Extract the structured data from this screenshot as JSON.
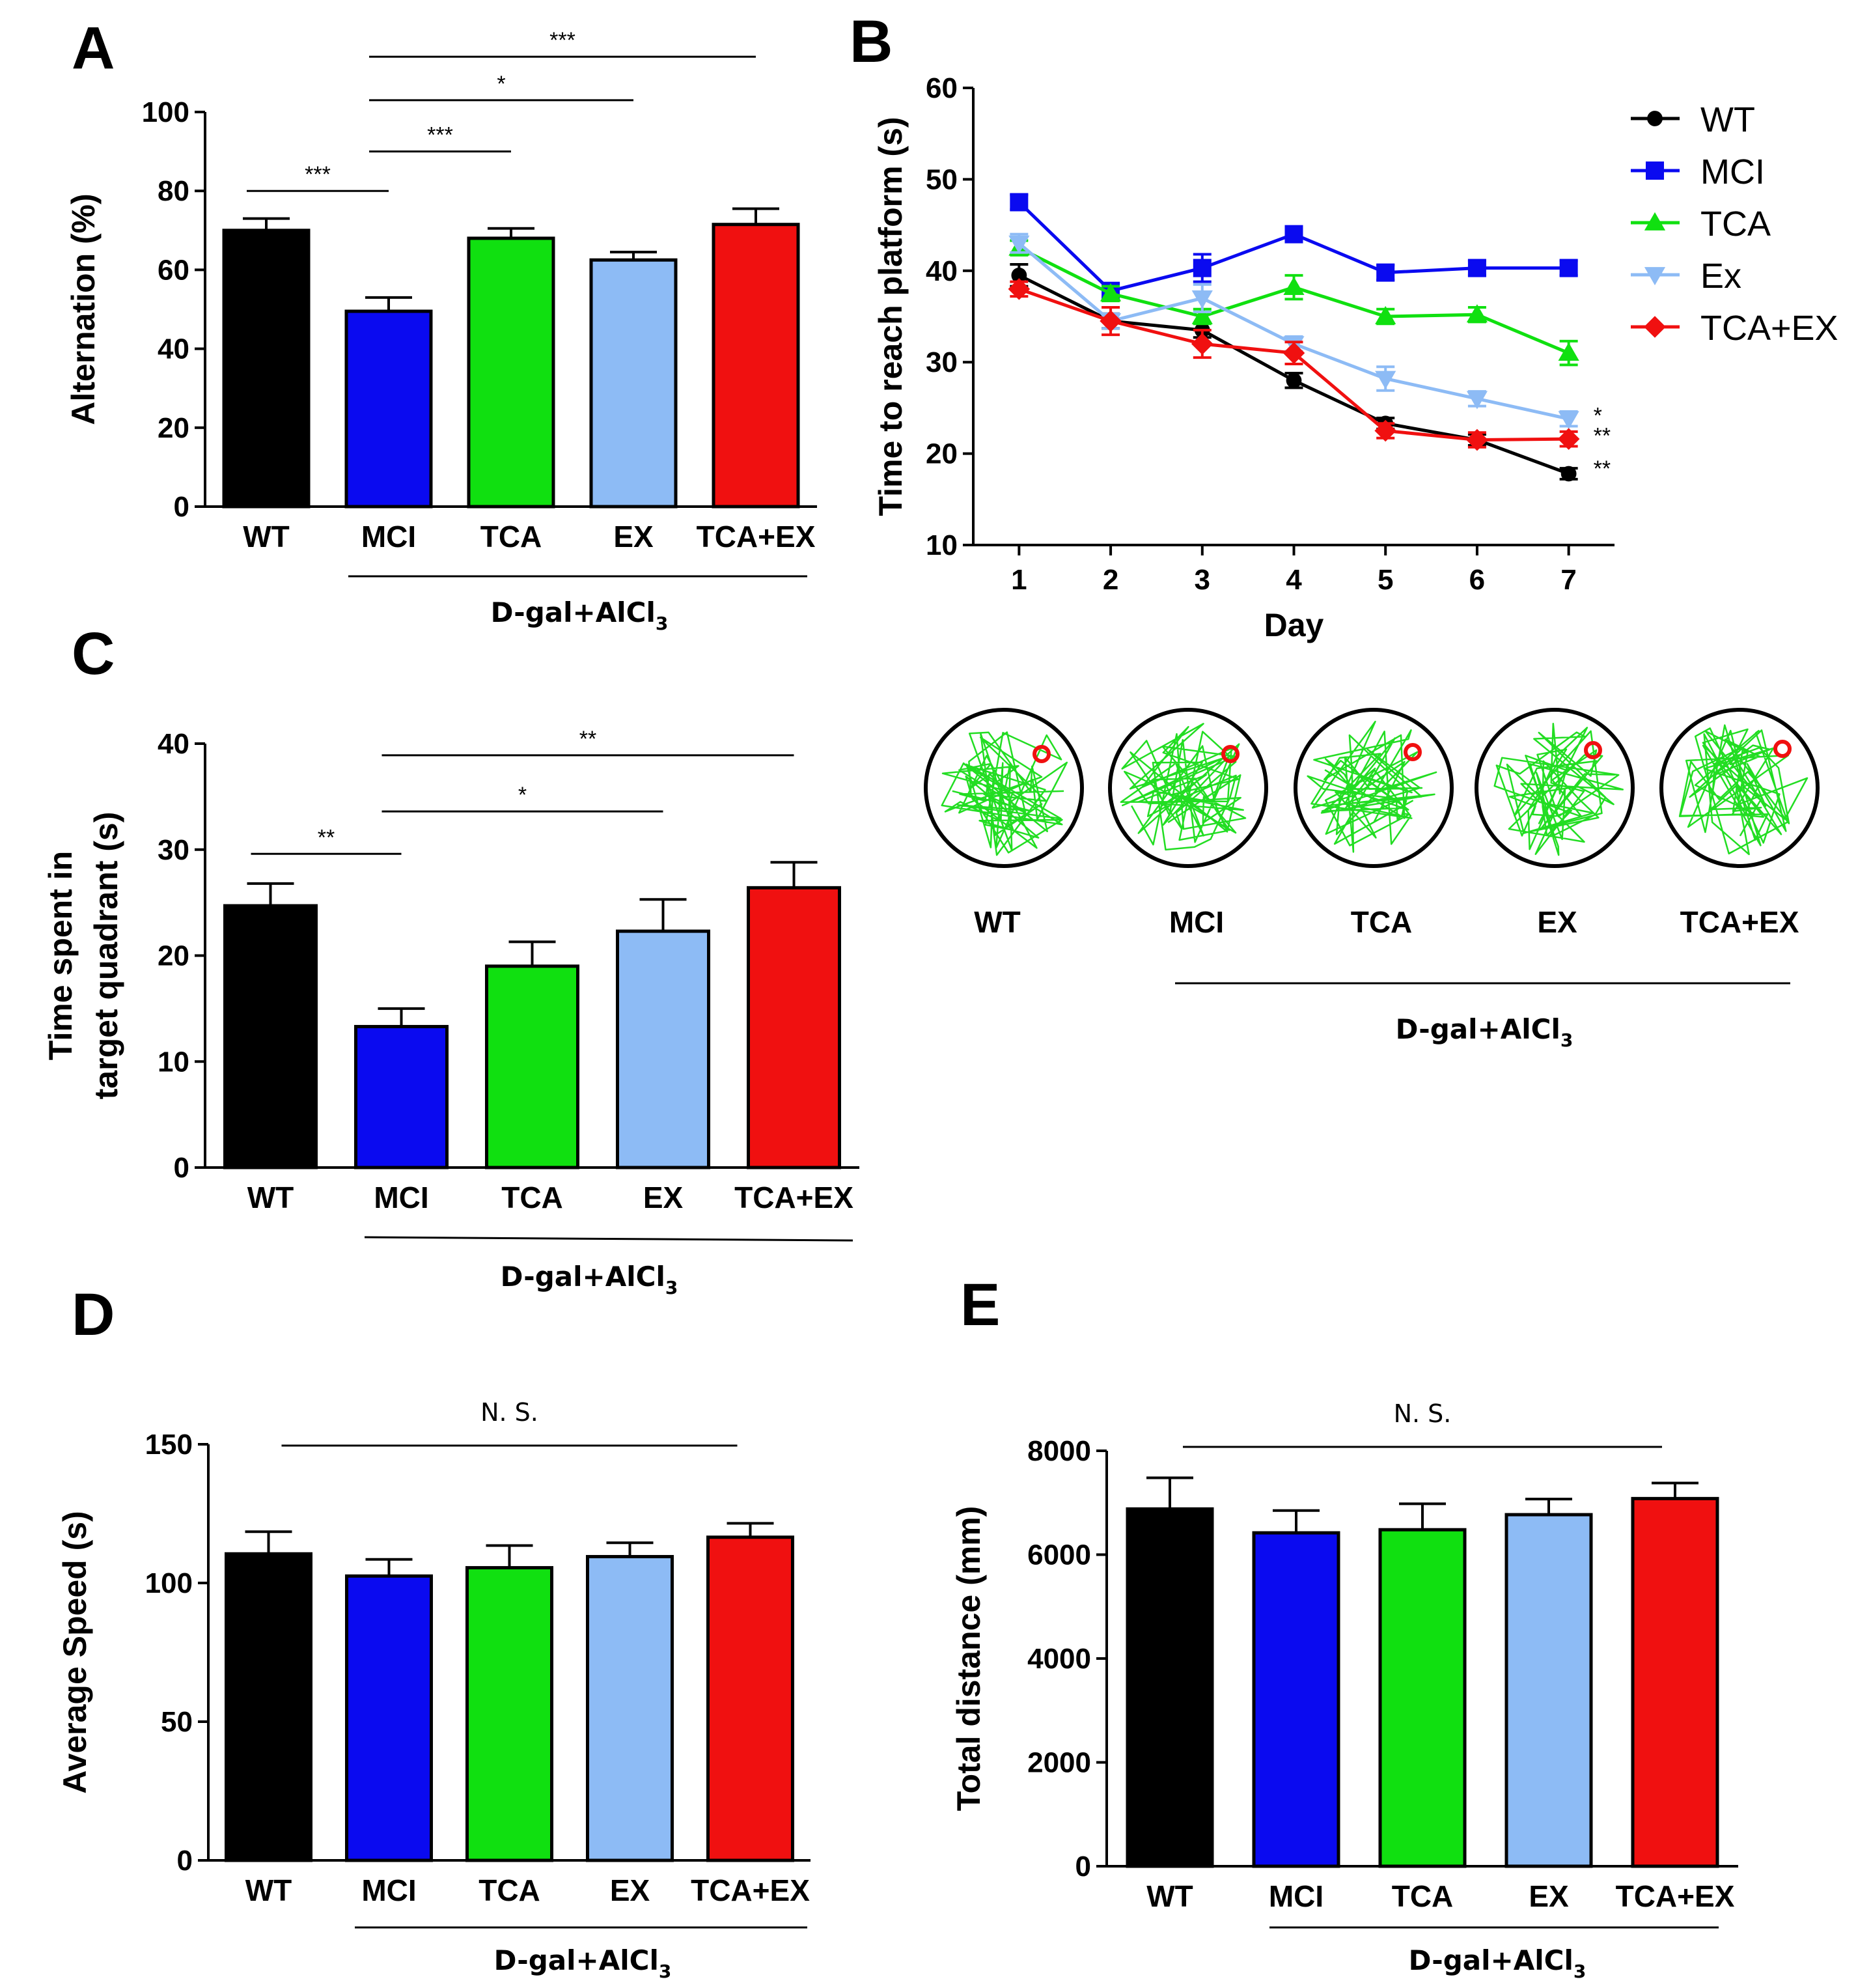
{
  "panels": {
    "A": "A",
    "B": "B",
    "C": "C",
    "D": "D",
    "E": "E"
  },
  "group_label": {
    "main": "D-gal+AlCl",
    "sub": "3"
  },
  "colors": {
    "WT": "#000000",
    "MCI": "#0a0af0",
    "TCA": "#10e010",
    "EX": "#8dbbf5",
    "TCA+EX": "#f01010"
  },
  "chart_data": [
    {
      "id": "A",
      "type": "bar",
      "categories": [
        "WT",
        "MCI",
        "TCA",
        "EX",
        "TCA+EX"
      ],
      "values": [
        70,
        49.5,
        68,
        62.5,
        71.5
      ],
      "errors": [
        3,
        3.5,
        2.5,
        2,
        4
      ],
      "ylabel": "Alternation (%)",
      "ylim": [
        0,
        100
      ],
      "yticks": [
        "0",
        "20",
        "40",
        "60",
        "80",
        "100"
      ],
      "significance": [
        {
          "label": "***",
          "from": 0,
          "to": 1,
          "y": 80
        },
        {
          "label": "***",
          "from": 1,
          "to": 2,
          "y": 90
        },
        {
          "label": "*",
          "from": 1,
          "to": 3,
          "y": 103
        },
        {
          "label": "***",
          "from": 1,
          "to": 4,
          "y": 114
        }
      ]
    },
    {
      "id": "B",
      "type": "line",
      "x": [
        1,
        2,
        3,
        4,
        5,
        6,
        7
      ],
      "xticks": [
        "1",
        "2",
        "3",
        "4",
        "5",
        "6",
        "7"
      ],
      "yticks": [
        "10",
        "20",
        "30",
        "40",
        "50",
        "60"
      ],
      "xlabel": "Day",
      "ylabel": "Time to reach platform (s)",
      "xlim": [
        0.5,
        7.5
      ],
      "ylim": [
        10,
        60
      ],
      "series": [
        {
          "name": "WT",
          "color": "#000000",
          "marker": "circle",
          "values": [
            39.5,
            34.5,
            33.5,
            28,
            23.3,
            21.5,
            17.8
          ],
          "errors": [
            1.2,
            0.8,
            0.8,
            0.8,
            0.6,
            0.6,
            0.6
          ]
        },
        {
          "name": "MCI",
          "color": "#0a0af0",
          "marker": "square",
          "values": [
            47.5,
            37.8,
            40.3,
            44,
            39.8,
            40.3,
            40.3
          ],
          "errors": [
            0.8,
            0.8,
            1.5,
            0.8,
            0.8,
            0.8,
            0.8
          ]
        },
        {
          "name": "TCA",
          "color": "#10e010",
          "marker": "triangle-up",
          "values": [
            42.5,
            37.5,
            35,
            38.2,
            35,
            35.2,
            31
          ],
          "errors": [
            0.8,
            0.8,
            0.8,
            1.3,
            0.8,
            0.8,
            1.3
          ]
        },
        {
          "name": "Ex",
          "color": "#8dbbf5",
          "marker": "triangle-down",
          "values": [
            43,
            34.5,
            37,
            32,
            28.2,
            26,
            23.8
          ],
          "errors": [
            1,
            0.8,
            1.5,
            0.8,
            1.3,
            0.8,
            0.8
          ]
        },
        {
          "name": "TCA+EX",
          "color": "#f01010",
          "marker": "diamond",
          "values": [
            38,
            34.5,
            32,
            31,
            22.5,
            21.5,
            21.6
          ],
          "errors": [
            0.8,
            1.5,
            1.5,
            1.2,
            0.8,
            0.8,
            0.8
          ]
        }
      ],
      "annotations": [
        {
          "label": "*",
          "y": 24.2
        },
        {
          "label": "**",
          "y": 22
        },
        {
          "label": "**",
          "y": 18.4
        }
      ],
      "legend": "top-right"
    },
    {
      "id": "C",
      "type": "bar",
      "categories": [
        "WT",
        "MCI",
        "TCA",
        "EX",
        "TCA+EX"
      ],
      "values": [
        24.7,
        13.3,
        19,
        22.3,
        26.4
      ],
      "errors": [
        2.1,
        1.7,
        2.3,
        3,
        2.4
      ],
      "ylabel": [
        "Time spent in",
        "target quadrant (s)"
      ],
      "ylim": [
        0,
        40
      ],
      "yticks": [
        "0",
        "10",
        "20",
        "30",
        "40"
      ],
      "significance": [
        {
          "label": "**",
          "from": 0,
          "to": 1,
          "y": 29.6
        },
        {
          "label": "*",
          "from": 1,
          "to": 3,
          "y": 33.6
        },
        {
          "label": "**",
          "from": 1,
          "to": 4,
          "y": 38.9
        }
      ]
    },
    {
      "id": "D",
      "type": "bar",
      "categories": [
        "WT",
        "MCI",
        "TCA",
        "EX",
        "TCA+EX"
      ],
      "values": [
        110.5,
        102.5,
        105.5,
        109.5,
        116.5
      ],
      "errors": [
        8,
        6,
        8,
        5,
        5
      ],
      "ylabel": "Average Speed (s)",
      "ylim": [
        0,
        150
      ],
      "yticks": [
        "0",
        "50",
        "100",
        "150"
      ],
      "ns": "N. S."
    },
    {
      "id": "E",
      "type": "bar",
      "categories": [
        "WT",
        "MCI",
        "TCA",
        "EX",
        "TCA+EX"
      ],
      "values": [
        6880,
        6420,
        6480,
        6770,
        7080
      ],
      "errors": [
        600,
        430,
        500,
        300,
        300
      ],
      "ylabel": "Total distance (mm)",
      "ylim": [
        0,
        8000
      ],
      "yticks": [
        "0",
        "2000",
        "4000",
        "6000",
        "8000"
      ],
      "ns": "N. S."
    }
  ],
  "tracks": {
    "labels": [
      "WT",
      "MCI",
      "TCA",
      "EX",
      "TCA+EX"
    ]
  }
}
